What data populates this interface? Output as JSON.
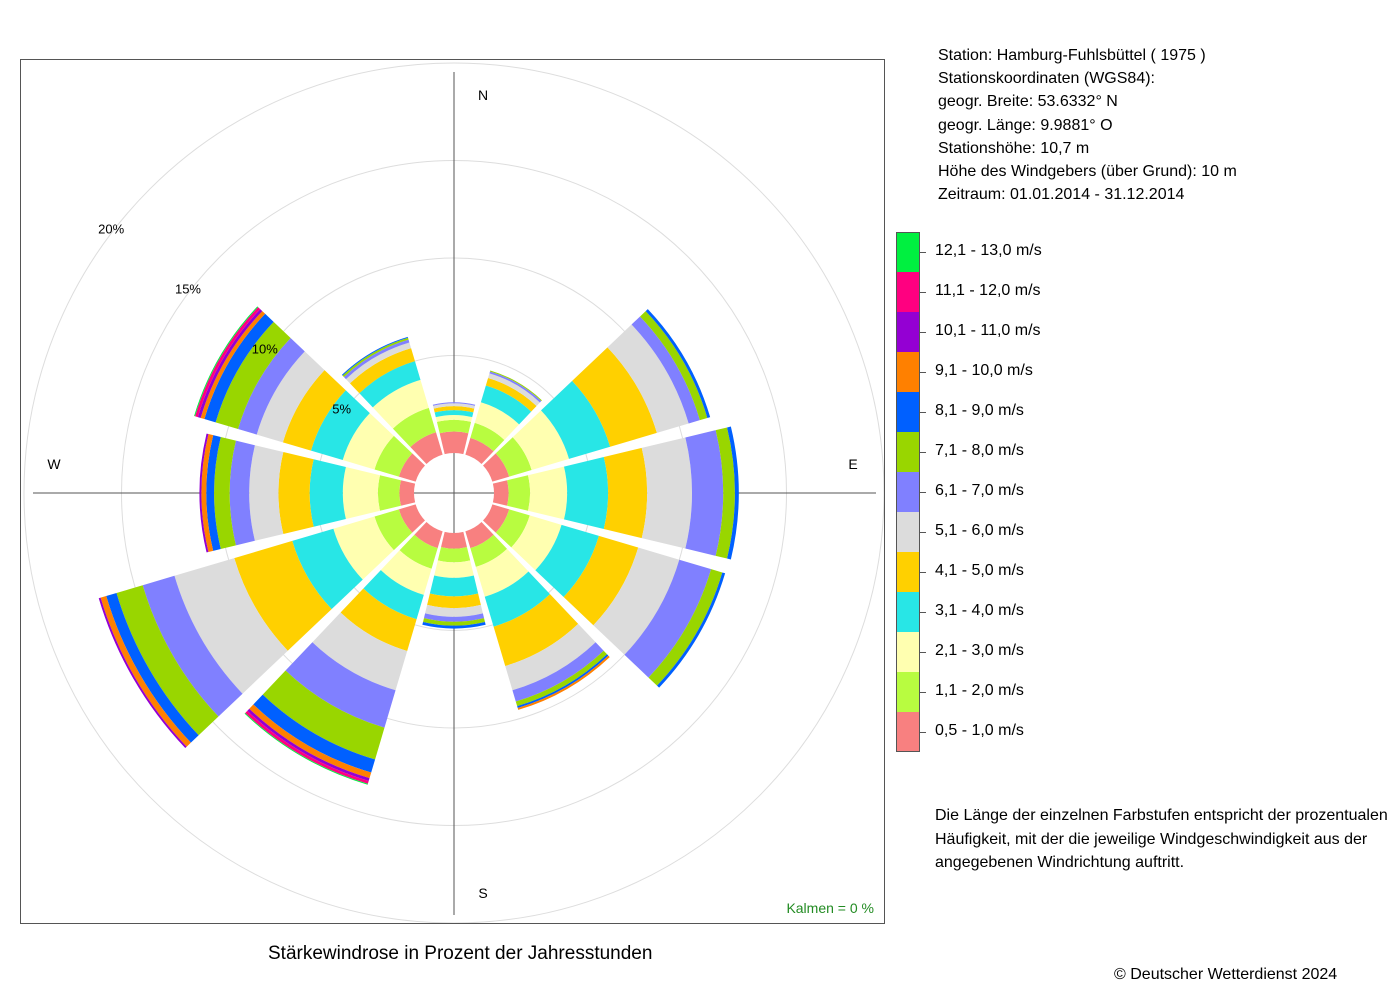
{
  "station_info": {
    "station": "Station:  Hamburg-Fuhlsbüttel  ( 1975 )",
    "coords_heading": "Stationskoordinaten (WGS84):",
    "latitude": "geogr. Breite: 53.6332° N",
    "longitude": "geogr. Länge:   9.9881° O",
    "elevation": "Stationshöhe: 10,7 m",
    "sensor_height": "Höhe des Windgebers (über Grund): 10 m",
    "period": "Zeitraum: 01.01.2014 - 31.12.2014"
  },
  "note": "Die Länge der einzelnen Farbstufen entspricht der prozentualen Häufigkeit, mit der die jeweilige Windgeschwindigkeit aus der angegebenen Windrichtung auftritt.",
  "copyright": "© Deutscher Wetterdienst  2024",
  "chart_data": {
    "type": "wind-rose",
    "title": "Stärkewindrose in Prozent der Jahresstunden",
    "calm_label": "Kalmen  =  0 %",
    "compass": {
      "N": "N",
      "E": "E",
      "S": "S",
      "W": "W"
    },
    "radial_ticks": [
      "5%",
      "10%",
      "15%",
      "20%"
    ],
    "radial_values": [
      5,
      10,
      15,
      20
    ],
    "directions_deg": [
      0,
      30,
      60,
      90,
      120,
      150,
      180,
      210,
      240,
      270,
      300,
      330
    ],
    "classes": [
      {
        "label": "0,5 - 1,0 m/s",
        "color": "#F88080"
      },
      {
        "label": "1,1 - 2,0 m/s",
        "color": "#B8FC40"
      },
      {
        "label": "2,1 - 3,0 m/s",
        "color": "#FFFFB0"
      },
      {
        "label": "3,1 - 4,0 m/s",
        "color": "#28E6E6"
      },
      {
        "label": "4,1 - 5,0 m/s",
        "color": "#FFD000"
      },
      {
        "label": "5,1 - 6,0 m/s",
        "color": "#DCDCDC"
      },
      {
        "label": "6,1 - 7,0 m/s",
        "color": "#8080FF"
      },
      {
        "label": "7,1 - 8,0 m/s",
        "color": "#99D600"
      },
      {
        "label": "8,1 - 9,0 m/s",
        "color": "#0060FF"
      },
      {
        "label": "9,1 - 10,0 m/s",
        "color": "#FF8000"
      },
      {
        "label": "10,1 - 11,0 m/s",
        "color": "#9400D3"
      },
      {
        "label": "11,1 - 12,0 m/s",
        "color": "#FF0080"
      },
      {
        "label": "12,1 - 13,0 m/s",
        "color": "#00F040"
      }
    ],
    "series": [
      {
        "direction": 0,
        "values": [
          1.1,
          0.6,
          0.25,
          0.25,
          0.2,
          0.15,
          0.05,
          0,
          0,
          0,
          0,
          0,
          0
        ]
      },
      {
        "direction": 30,
        "values": [
          0.9,
          0.8,
          1.1,
          0.9,
          0.4,
          0.25,
          0.1,
          0.05,
          0,
          0,
          0,
          0,
          0
        ]
      },
      {
        "direction": 60,
        "values": [
          0.9,
          1.2,
          2.0,
          2.2,
          2.5,
          1.7,
          0.6,
          0.4,
          0.15,
          0,
          0,
          0,
          0
        ]
      },
      {
        "direction": 90,
        "values": [
          0.75,
          1.1,
          1.9,
          2.1,
          2.0,
          2.3,
          1.6,
          0.6,
          0.2,
          0,
          0,
          0,
          0
        ]
      },
      {
        "direction": 120,
        "values": [
          0.9,
          1.1,
          1.7,
          2.0,
          2.1,
          2.2,
          1.7,
          0.6,
          0.15,
          0,
          0,
          0,
          0
        ]
      },
      {
        "direction": 150,
        "values": [
          0.9,
          1.0,
          1.6,
          1.6,
          2.1,
          1.3,
          0.6,
          0.25,
          0.1,
          0.1,
          0,
          0,
          0
        ]
      },
      {
        "direction": 180,
        "values": [
          0.8,
          0.7,
          0.8,
          0.95,
          0.6,
          0.45,
          0.25,
          0.2,
          0.15,
          0,
          0,
          0,
          0
        ]
      },
      {
        "direction": 210,
        "values": [
          0.9,
          1.1,
          1.4,
          1.3,
          1.7,
          2.1,
          2.0,
          1.7,
          0.7,
          0.3,
          0.15,
          0.15,
          0.05
        ]
      },
      {
        "direction": 240,
        "values": [
          0.9,
          1.3,
          2.2,
          2.2,
          3.1,
          3.2,
          1.7,
          1.4,
          0.55,
          0.3,
          0.1,
          0,
          0
        ]
      },
      {
        "direction": 270,
        "values": [
          0.75,
          1.1,
          1.8,
          1.7,
          1.6,
          1.5,
          1.0,
          0.8,
          0.4,
          0.25,
          0.1,
          0,
          0
        ]
      },
      {
        "direction": 300,
        "values": [
          0.9,
          1.3,
          1.7,
          1.7,
          1.5,
          1.4,
          1.0,
          1.2,
          0.6,
          0.2,
          0.15,
          0.15,
          0.05
        ]
      },
      {
        "direction": 330,
        "values": [
          1.2,
          1.3,
          1.5,
          1.0,
          0.7,
          0.3,
          0.15,
          0.1,
          0.05,
          0,
          0,
          0,
          0
        ]
      }
    ]
  }
}
